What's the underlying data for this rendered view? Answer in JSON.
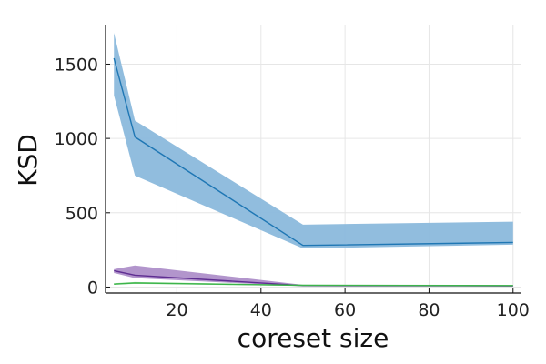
{
  "chart_data": {
    "type": "area",
    "title": "",
    "xlabel": "coreset size",
    "ylabel": "KSD",
    "xlim": [
      3,
      102
    ],
    "ylim": [
      -40,
      1760
    ],
    "xticks": [
      20,
      40,
      60,
      80,
      100
    ],
    "yticks": [
      0,
      500,
      1000,
      1500
    ],
    "grid": true,
    "legend": "none",
    "x": [
      5,
      10,
      50,
      100
    ],
    "series": [
      {
        "color": "#1f77b4",
        "fill_color": "#8bb9dc",
        "values": [
          1540,
          1010,
          280,
          300
        ],
        "upper": [
          1710,
          1120,
          420,
          440
        ],
        "lower": [
          1290,
          750,
          260,
          285
        ]
      },
      {
        "color": "#5e2d91",
        "fill_color": "#ae8fc9",
        "values": [
          110,
          80,
          10,
          8
        ],
        "upper": [
          120,
          145,
          15,
          12
        ],
        "lower": [
          95,
          60,
          5,
          5
        ]
      },
      {
        "color": "#3cb44b",
        "fill_color": "#9be09a",
        "values": [
          20,
          28,
          12,
          10
        ],
        "upper": [
          26,
          34,
          16,
          14
        ],
        "lower": [
          15,
          22,
          8,
          6
        ]
      }
    ]
  }
}
